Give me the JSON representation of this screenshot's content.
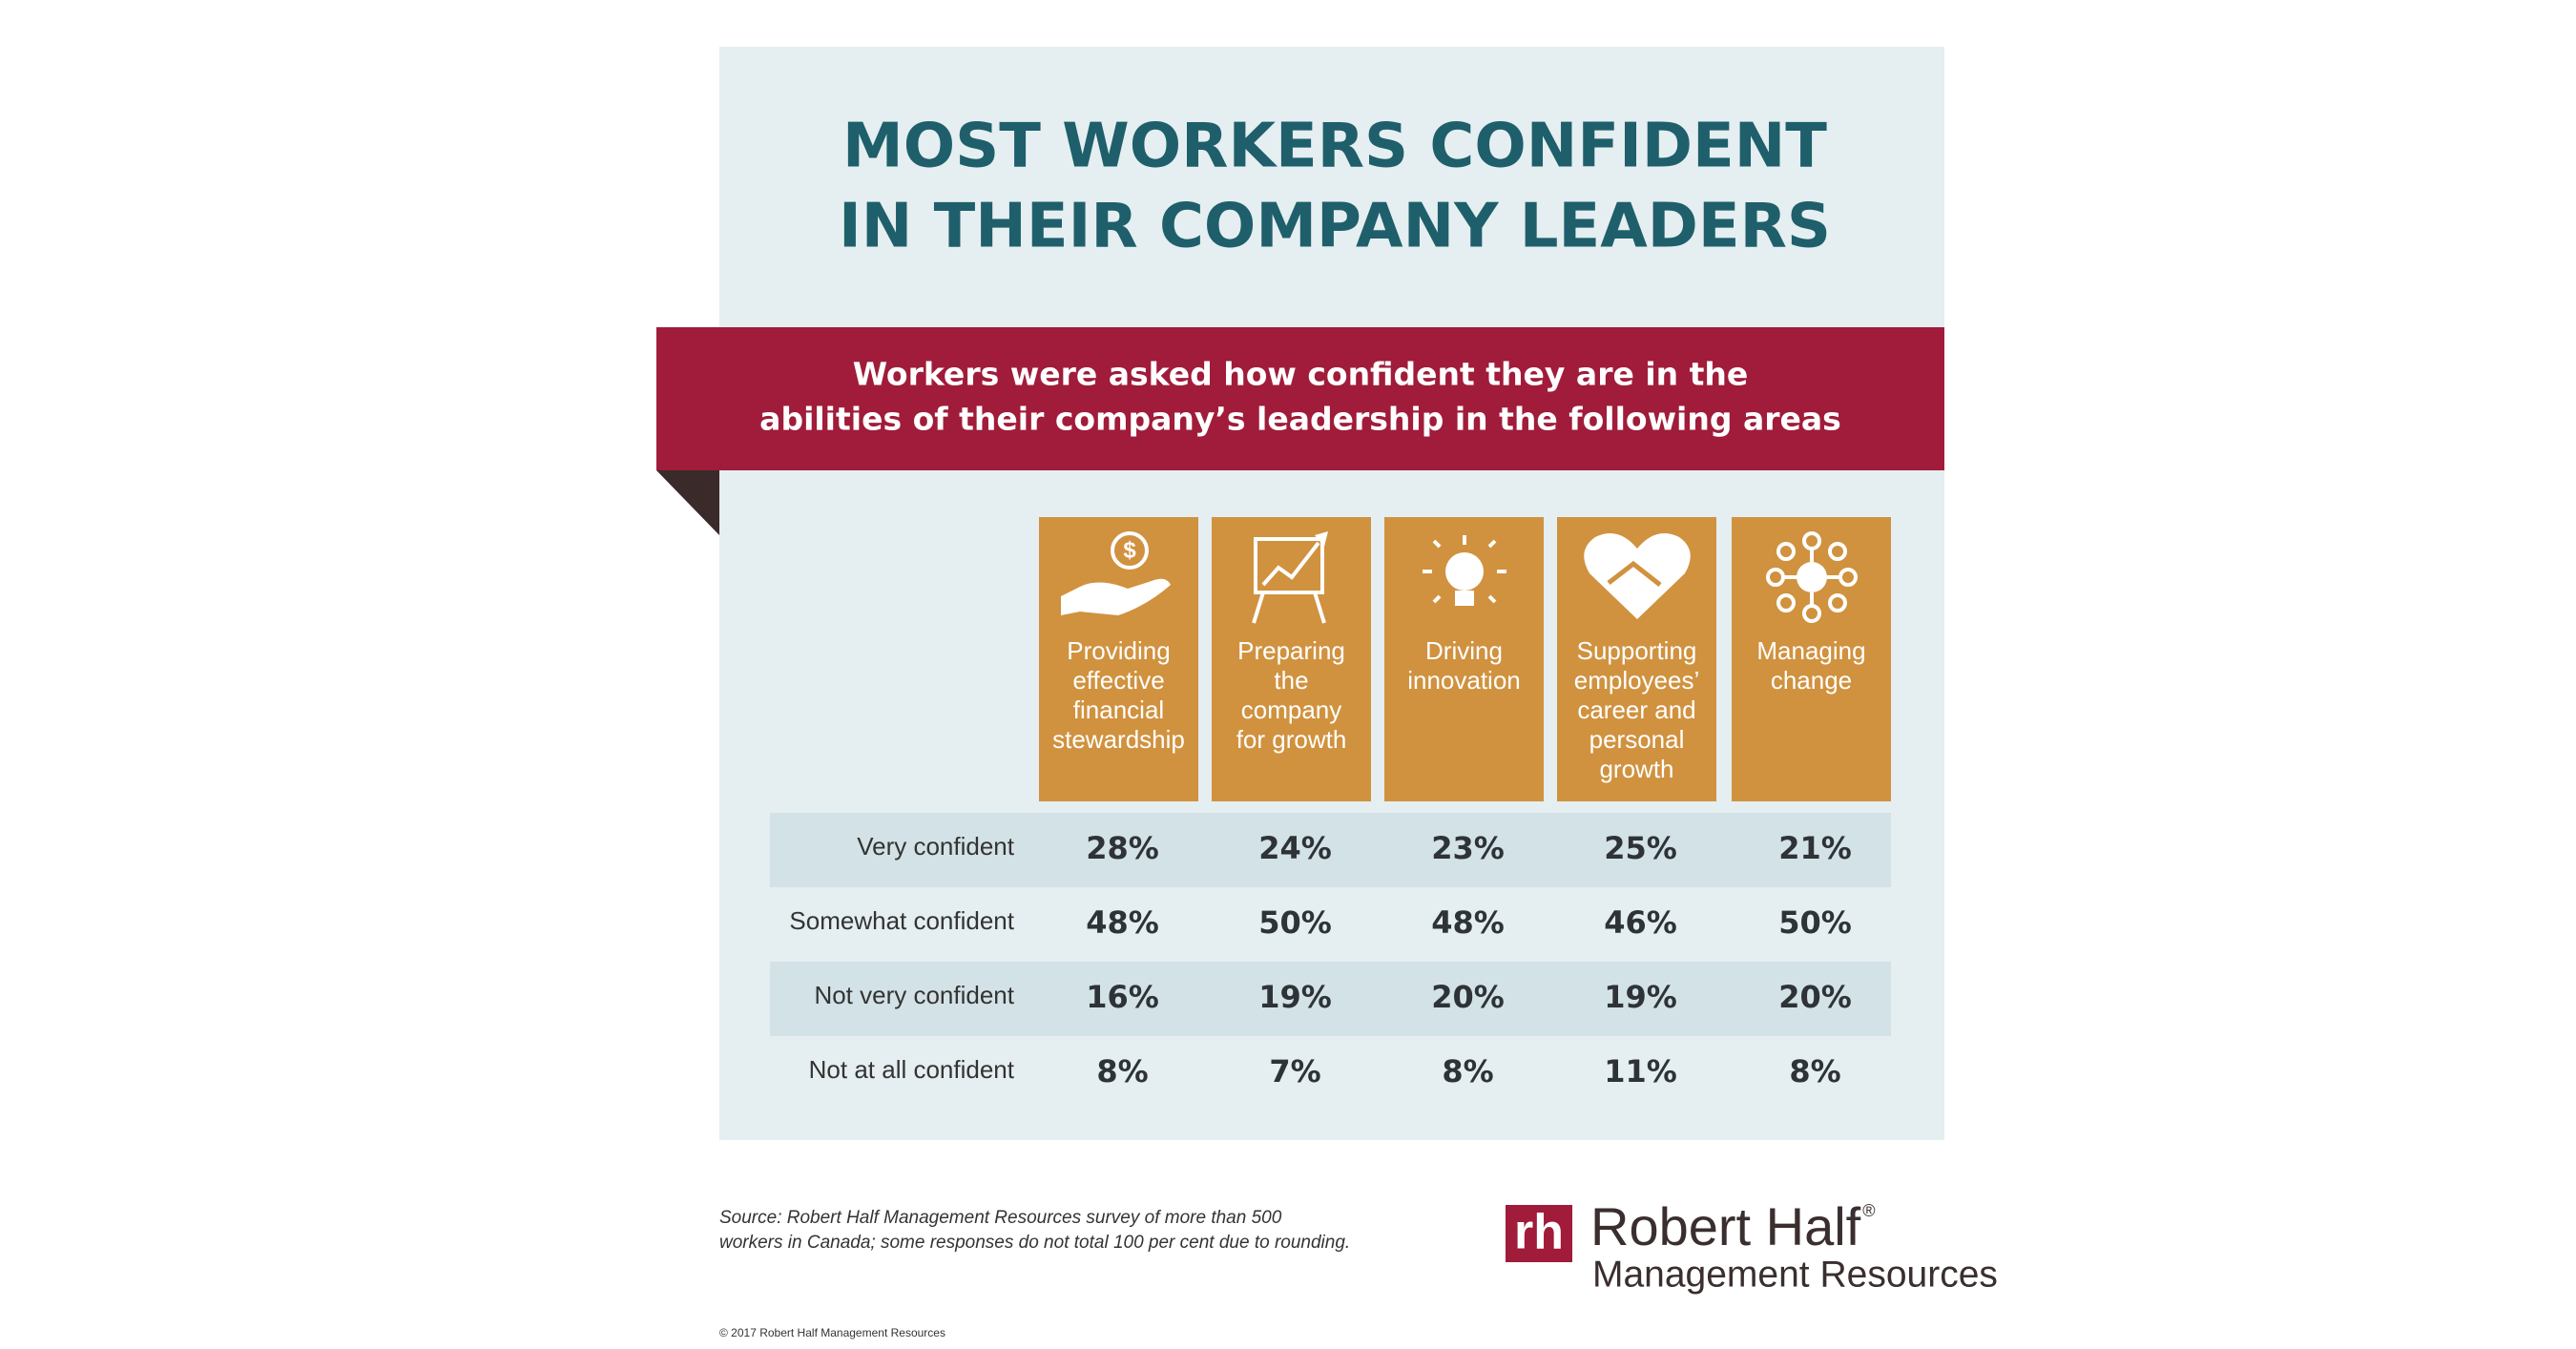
{
  "header": {
    "title_lines": [
      "MOST WORKERS CONFIDENT",
      "IN THEIR COMPANY LEADERS"
    ]
  },
  "banner": {
    "lines": [
      "Workers were asked how confident they are in the",
      "abilities of their company’s leadership in the following areas"
    ]
  },
  "table": {
    "columns": [
      {
        "lines": [
          "Providing",
          "effective",
          "financial",
          "stewardship"
        ]
      },
      {
        "lines": [
          "Preparing",
          "the",
          "company",
          "for growth"
        ]
      },
      {
        "lines": [
          "Driving",
          "innovation"
        ]
      },
      {
        "lines": [
          "Supporting",
          "employees’",
          "career and",
          "personal",
          "growth"
        ]
      },
      {
        "lines": [
          "Managing",
          "change"
        ]
      }
    ],
    "rows": [
      {
        "label": "Very confident",
        "cells": [
          "28%",
          "24%",
          "23%",
          "25%",
          "21%"
        ]
      },
      {
        "label": "Somewhat confident",
        "cells": [
          "48%",
          "50%",
          "48%",
          "46%",
          "50%"
        ]
      },
      {
        "label": "Not very confident",
        "cells": [
          "16%",
          "19%",
          "20%",
          "19%",
          "20%"
        ]
      },
      {
        "label": "Not at all confident",
        "cells": [
          "8%",
          "7%",
          "8%",
          "11%",
          "8%"
        ]
      }
    ]
  },
  "footer": {
    "source_lines": [
      "Source: Robert Half Management Resources survey of more than 500",
      "workers in Canada; some responses do not total 100 per cent due to rounding."
    ],
    "copyright": "© 2017 Robert Half Management Resources",
    "logo_mark": "rh",
    "logo_name": "Robert Half",
    "logo_registered": "®",
    "logo_division": "Management Resources"
  }
}
